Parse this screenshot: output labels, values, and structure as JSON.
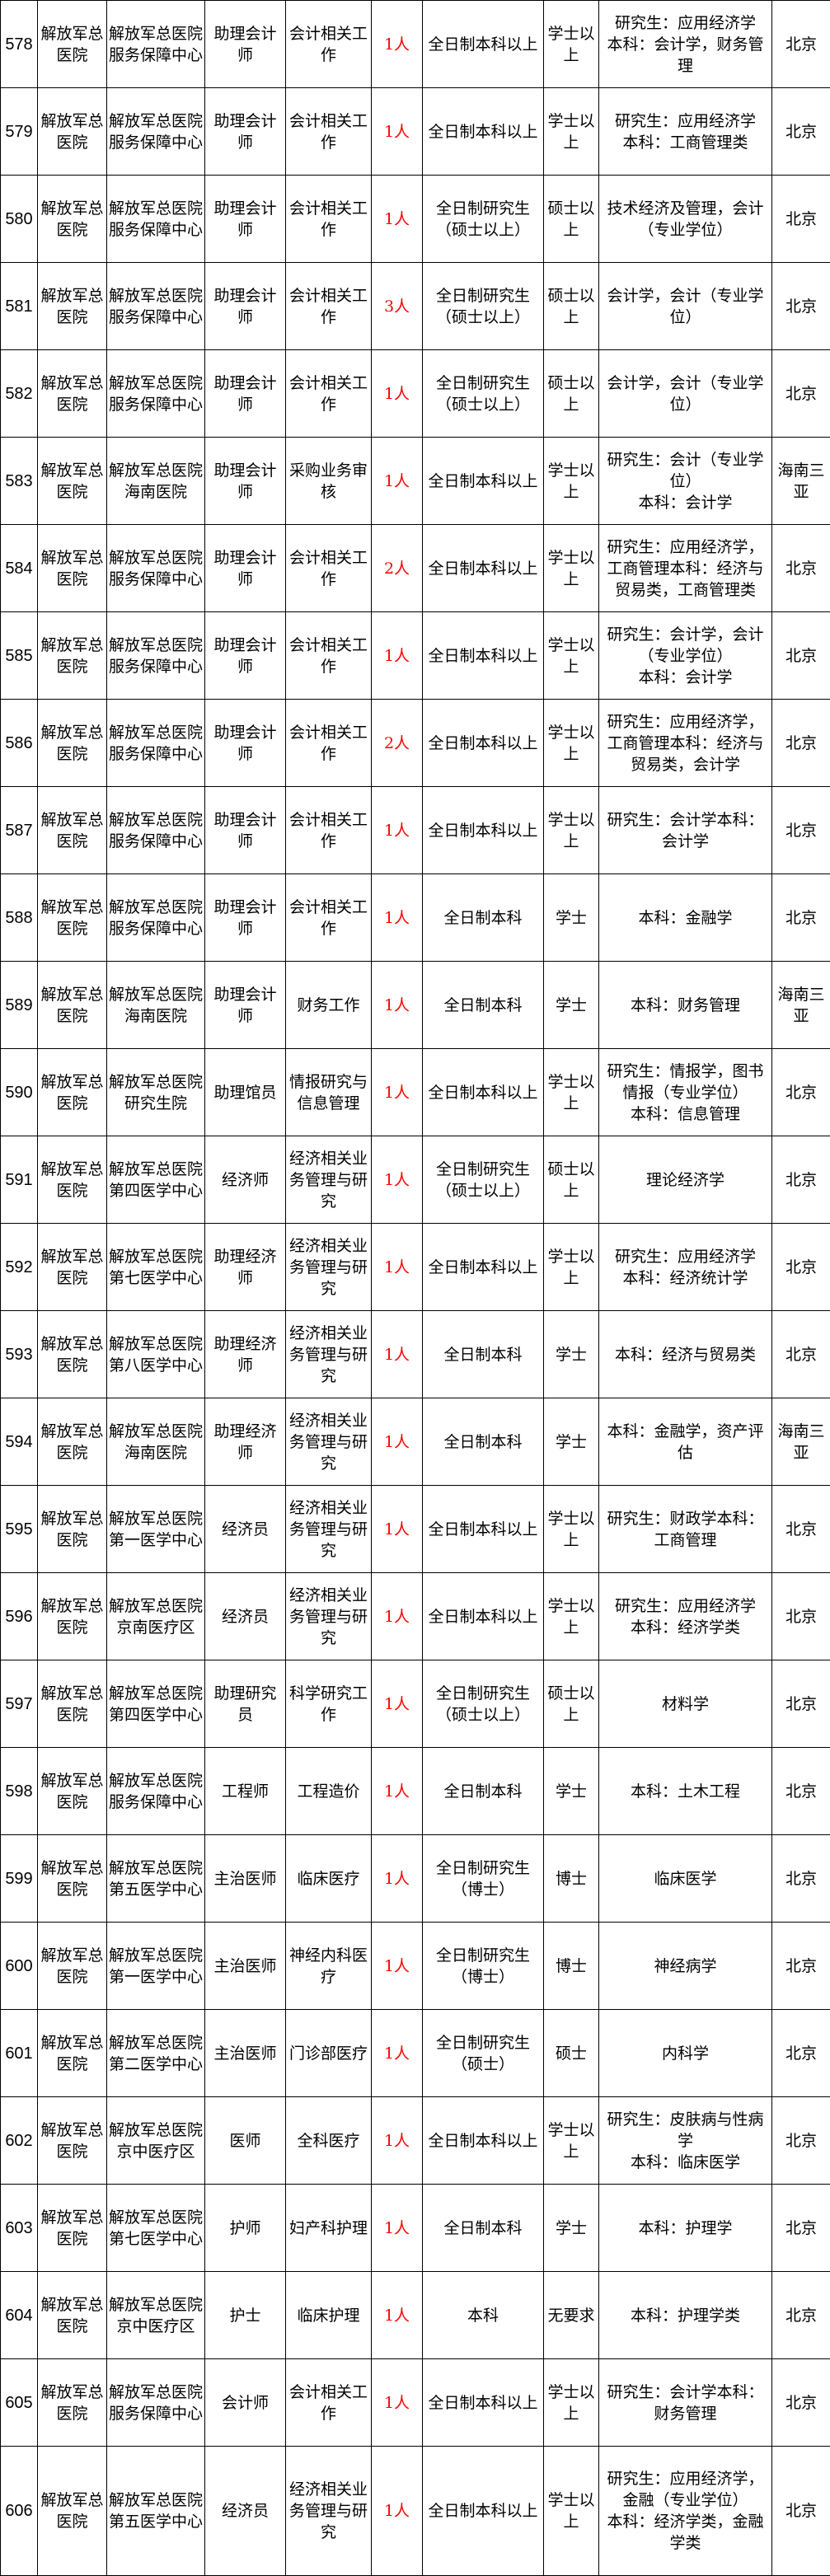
{
  "table": {
    "rows": [
      {
        "no": "578",
        "org": "解放军总医院",
        "dept": "解放军总医院服务保障中心",
        "post": "助理会计师",
        "duty": "会计相关工作",
        "count": "1人",
        "edu": "全日制本科以上",
        "degree": "学士以上",
        "major": "研究生：应用经济学\n本科：会计学，财务管理",
        "location": "北京"
      },
      {
        "no": "579",
        "org": "解放军总医院",
        "dept": "解放军总医院服务保障中心",
        "post": "助理会计师",
        "duty": "会计相关工作",
        "count": "1人",
        "edu": "全日制本科以上",
        "degree": "学士以上",
        "major": "研究生：应用经济学\n本科：工商管理类",
        "location": "北京"
      },
      {
        "no": "580",
        "org": "解放军总医院",
        "dept": "解放军总医院服务保障中心",
        "post": "助理会计师",
        "duty": "会计相关工作",
        "count": "1人",
        "edu": "全日制研究生（硕士以上）",
        "degree": "硕士以上",
        "major": "技术经济及管理，会计（专业学位）",
        "location": "北京"
      },
      {
        "no": "581",
        "org": "解放军总医院",
        "dept": "解放军总医院服务保障中心",
        "post": "助理会计师",
        "duty": "会计相关工作",
        "count": "3人",
        "edu": "全日制研究生（硕士以上）",
        "degree": "硕士以上",
        "major": "会计学，会计（专业学位）",
        "location": "北京"
      },
      {
        "no": "582",
        "org": "解放军总医院",
        "dept": "解放军总医院服务保障中心",
        "post": "助理会计师",
        "duty": "会计相关工作",
        "count": "1人",
        "edu": "全日制研究生（硕士以上）",
        "degree": "硕士以上",
        "major": "会计学，会计（专业学位）",
        "location": "北京"
      },
      {
        "no": "583",
        "org": "解放军总医院",
        "dept": "解放军总医院海南医院",
        "post": "助理会计师",
        "duty": "采购业务审核",
        "count": "1人",
        "edu": "全日制本科以上",
        "degree": "学士以上",
        "major": "研究生：会计（专业学位）\n本科：会计学",
        "location": "海南三亚"
      },
      {
        "no": "584",
        "org": "解放军总医院",
        "dept": "解放军总医院服务保障中心",
        "post": "助理会计师",
        "duty": "会计相关工作",
        "count": "2人",
        "edu": "全日制本科以上",
        "degree": "学士以上",
        "major": "研究生：应用经济学，工商管理本科：经济与贸易类，工商管理类",
        "location": "北京"
      },
      {
        "no": "585",
        "org": "解放军总医院",
        "dept": "解放军总医院服务保障中心",
        "post": "助理会计师",
        "duty": "会计相关工作",
        "count": "1人",
        "edu": "全日制本科以上",
        "degree": "学士以上",
        "major": "研究生：会计学，会计（专业学位）\n本科：会计学",
        "location": "北京"
      },
      {
        "no": "586",
        "org": "解放军总医院",
        "dept": "解放军总医院服务保障中心",
        "post": "助理会计师",
        "duty": "会计相关工作",
        "count": "2人",
        "edu": "全日制本科以上",
        "degree": "学士以上",
        "major": "研究生：应用经济学，工商管理本科：经济与贸易类，会计学",
        "location": "北京"
      },
      {
        "no": "587",
        "org": "解放军总医院",
        "dept": "解放军总医院服务保障中心",
        "post": "助理会计师",
        "duty": "会计相关工作",
        "count": "1人",
        "edu": "全日制本科以上",
        "degree": "学士以上",
        "major": "研究生：会计学本科：会计学",
        "location": "北京"
      },
      {
        "no": "588",
        "org": "解放军总医院",
        "dept": "解放军总医院服务保障中心",
        "post": "助理会计师",
        "duty": "会计相关工作",
        "count": "1人",
        "edu": "全日制本科",
        "degree": "学士",
        "major": "本科：金融学",
        "location": "北京"
      },
      {
        "no": "589",
        "org": "解放军总医院",
        "dept": "解放军总医院海南医院",
        "post": "助理会计师",
        "duty": "财务工作",
        "count": "1人",
        "edu": "全日制本科",
        "degree": "学士",
        "major": "本科：财务管理",
        "location": "海南三亚"
      },
      {
        "no": "590",
        "org": "解放军总医院",
        "dept": "解放军总医院研究生院",
        "post": "助理馆员",
        "duty": "情报研究与信息管理",
        "count": "1人",
        "edu": "全日制本科以上",
        "degree": "学士以上",
        "major": "研究生：情报学，图书情报（专业学位）\n本科：信息管理",
        "location": "北京"
      },
      {
        "no": "591",
        "org": "解放军总医院",
        "dept": "解放军总医院第四医学中心",
        "post": "经济师",
        "duty": "经济相关业务管理与研究",
        "count": "1人",
        "edu": "全日制研究生（硕士以上）",
        "degree": "硕士以上",
        "major": "理论经济学",
        "location": "北京"
      },
      {
        "no": "592",
        "org": "解放军总医院",
        "dept": "解放军总医院第七医学中心",
        "post": "助理经济师",
        "duty": "经济相关业务管理与研究",
        "count": "1人",
        "edu": "全日制本科以上",
        "degree": "学士以上",
        "major": "研究生：应用经济学\n本科：经济统计学",
        "location": "北京"
      },
      {
        "no": "593",
        "org": "解放军总医院",
        "dept": "解放军总医院第八医学中心",
        "post": "助理经济师",
        "duty": "经济相关业务管理与研究",
        "count": "1人",
        "edu": "全日制本科",
        "degree": "学士",
        "major": "本科：经济与贸易类",
        "location": "北京"
      },
      {
        "no": "594",
        "org": "解放军总医院",
        "dept": "解放军总医院海南医院",
        "post": "助理经济师",
        "duty": "经济相关业务管理与研究",
        "count": "1人",
        "edu": "全日制本科",
        "degree": "学士",
        "major": "本科：金融学，资产评估",
        "location": "海南三亚"
      },
      {
        "no": "595",
        "org": "解放军总医院",
        "dept": "解放军总医院第一医学中心",
        "post": "经济员",
        "duty": "经济相关业务管理与研究",
        "count": "1人",
        "edu": "全日制本科以上",
        "degree": "学士以上",
        "major": "研究生：财政学本科：工商管理",
        "location": "北京"
      },
      {
        "no": "596",
        "org": "解放军总医院",
        "dept": "解放军总医院京南医疗区",
        "post": "经济员",
        "duty": "经济相关业务管理与研究",
        "count": "1人",
        "edu": "全日制本科以上",
        "degree": "学士以上",
        "major": "研究生：应用经济学\n本科：经济学类",
        "location": "北京"
      },
      {
        "no": "597",
        "org": "解放军总医院",
        "dept": "解放军总医院第四医学中心",
        "post": "助理研究员",
        "duty": "科学研究工作",
        "count": "1人",
        "edu": "全日制研究生（硕士以上）",
        "degree": "硕士以上",
        "major": "材料学",
        "location": "北京"
      },
      {
        "no": "598",
        "org": "解放军总医院",
        "dept": "解放军总医院服务保障中心",
        "post": "工程师",
        "duty": "工程造价",
        "count": "1人",
        "edu": "全日制本科",
        "degree": "学士",
        "major": "本科：土木工程",
        "location": "北京"
      },
      {
        "no": "599",
        "org": "解放军总医院",
        "dept": "解放军总医院第五医学中心",
        "post": "主治医师",
        "duty": "临床医疗",
        "count": "1人",
        "edu": "全日制研究生（博士）",
        "degree": "博士",
        "major": "临床医学",
        "location": "北京"
      },
      {
        "no": "600",
        "org": "解放军总医院",
        "dept": "解放军总医院第一医学中心",
        "post": "主治医师",
        "duty": "神经内科医疗",
        "count": "1人",
        "edu": "全日制研究生（博士）",
        "degree": "博士",
        "major": "神经病学",
        "location": "北京"
      },
      {
        "no": "601",
        "org": "解放军总医院",
        "dept": "解放军总医院第二医学中心",
        "post": "主治医师",
        "duty": "门诊部医疗",
        "count": "1人",
        "edu": "全日制研究生（硕士）",
        "degree": "硕士",
        "major": "内科学",
        "location": "北京"
      },
      {
        "no": "602",
        "org": "解放军总医院",
        "dept": "解放军总医院京中医疗区",
        "post": "医师",
        "duty": "全科医疗",
        "count": "1人",
        "edu": "全日制本科以上",
        "degree": "学士以上",
        "major": "研究生：皮肤病与性病学\n本科：临床医学",
        "location": "北京"
      },
      {
        "no": "603",
        "org": "解放军总医院",
        "dept": "解放军总医院第七医学中心",
        "post": "护师",
        "duty": "妇产科护理",
        "count": "1人",
        "edu": "全日制本科",
        "degree": "学士",
        "major": "本科：护理学",
        "location": "北京"
      },
      {
        "no": "604",
        "org": "解放军总医院",
        "dept": "解放军总医院京中医疗区",
        "post": "护士",
        "duty": "临床护理",
        "count": "1人",
        "edu": "本科",
        "degree": "无要求",
        "major": "本科：护理学类",
        "location": "北京"
      },
      {
        "no": "605",
        "org": "解放军总医院",
        "dept": "解放军总医院服务保障中心",
        "post": "会计师",
        "duty": "会计相关工作",
        "count": "1人",
        "edu": "全日制本科以上",
        "degree": "学士以上",
        "major": "研究生：会计学本科：财务管理",
        "location": "北京"
      },
      {
        "no": "606",
        "org": "解放军总医院",
        "dept": "解放军总医院第五医学中心",
        "post": "经济员",
        "duty": "经济相关业务管理与研究",
        "count": "1人",
        "edu": "全日制本科以上",
        "degree": "学士以上",
        "major": "研究生：应用经济学，金融（专业学位）\n本科：经济学类，金融学类",
        "location": "北京"
      }
    ]
  },
  "colors": {
    "count_text": "#ff0000",
    "border": "#000000"
  }
}
